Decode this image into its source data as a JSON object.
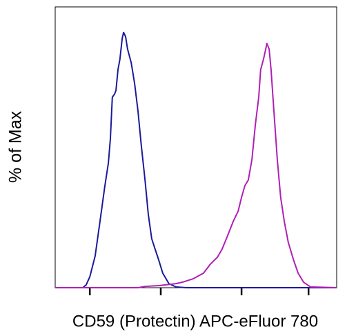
{
  "chart_data": {
    "type": "line",
    "x_label": "CD59 (Protectin) APC-eFluor 780",
    "y_label": "% of Max",
    "xlim": [
      0,
      100
    ],
    "ylim": [
      0,
      110
    ],
    "xticks": [
      12.3,
      37.5,
      66.2,
      90.0
    ],
    "series": [
      {
        "color": "#1a1a9a",
        "x": [
          0,
          9.8,
          11.0,
          12.3,
          14.2,
          15.9,
          17.6,
          18.9,
          19.6,
          20.3,
          21.1,
          21.6,
          22.3,
          23.0,
          23.8,
          24.3,
          25.0,
          25.7,
          27.0,
          28.2,
          29.4,
          30.6,
          31.9,
          33.1,
          34.3,
          35.5,
          36.8,
          38.2,
          40.4,
          42.9,
          46.6,
          100
        ],
        "values": [
          0,
          0,
          1.1,
          4.3,
          12.4,
          25.9,
          39.5,
          48.9,
          58.4,
          74.6,
          75.9,
          77.3,
          85.4,
          89.5,
          97.6,
          100,
          98.4,
          93.5,
          88.1,
          80.0,
          69.2,
          55.7,
          42.2,
          28.6,
          19.2,
          15.1,
          10.8,
          5.7,
          1.6,
          0.3,
          0,
          0
        ]
      },
      {
        "color": "#b01fb5",
        "x": [
          0,
          29.4,
          31.9,
          36.8,
          42.9,
          45.3,
          49.0,
          52.7,
          55.1,
          57.6,
          59.3,
          61.3,
          63.2,
          65.0,
          66.2,
          67.4,
          68.6,
          69.9,
          71.1,
          72.3,
          73.0,
          74.0,
          74.8,
          75.2,
          76.0,
          76.7,
          77.7,
          78.9,
          80.1,
          81.4,
          82.8,
          84.6,
          86.3,
          88.2,
          90.7,
          100
        ],
        "values": [
          0,
          0,
          0.5,
          0.8,
          1.6,
          2.2,
          3.5,
          5.7,
          9.2,
          11.9,
          15.1,
          20.5,
          25.9,
          30.0,
          35.4,
          40.0,
          42.2,
          50.3,
          63.8,
          74.6,
          85.4,
          89.5,
          93.5,
          95.7,
          93.5,
          85.4,
          69.2,
          50.3,
          35.4,
          25.9,
          17.8,
          11.1,
          5.7,
          2.2,
          0.3,
          0
        ]
      }
    ]
  }
}
